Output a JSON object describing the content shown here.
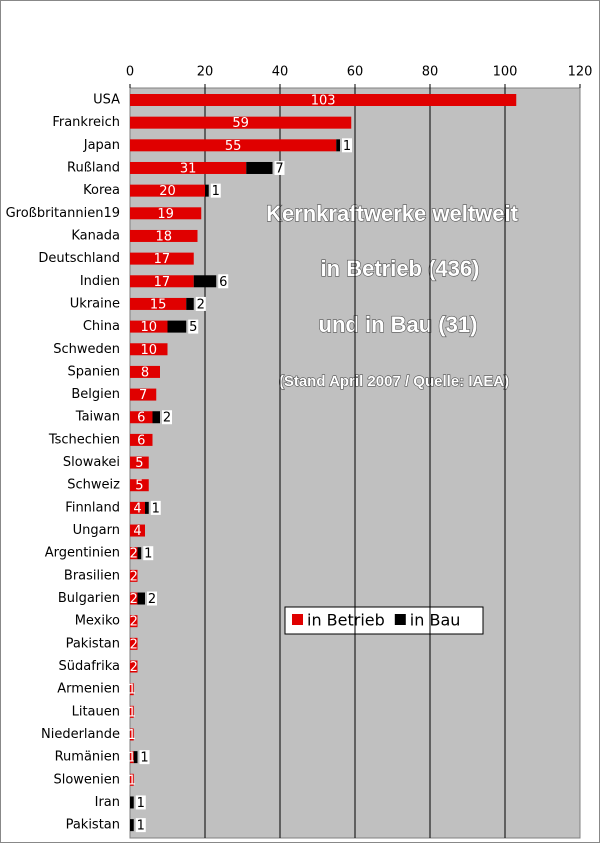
{
  "chart_data": {
    "type": "stacked-barh",
    "annotations": [
      "Kernkraftwerke weltweit",
      "in Betrieb (436)",
      "und in Bau (31)",
      "(Stand April 2007 / Quelle: IAEA)"
    ],
    "categories": [
      "USA",
      "Frankreich",
      "Japan",
      "Rußland",
      "Korea",
      "Großbritannien19",
      "Kanada",
      "Deutschland",
      "Indien",
      "Ukraine",
      "China",
      "Schweden",
      "Spanien",
      "Belgien",
      "Taiwan",
      "Tschechien",
      "Slowakei",
      "Schweiz",
      "Finnland",
      "Ungarn",
      "Argentinien",
      "Brasilien",
      "Bulgarien",
      "Mexiko",
      "Pakistan",
      "Südafrika",
      "Armenien",
      "Litauen",
      "Niederlande",
      "Rumänien",
      "Slowenien",
      "Iran",
      "Pakistan"
    ],
    "series": [
      {
        "name": "in Betrieb",
        "color": "#e00000",
        "label_color": "#ffffff",
        "values": [
          103,
          59,
          55,
          31,
          20,
          19,
          18,
          17,
          17,
          15,
          10,
          10,
          8,
          7,
          6,
          6,
          5,
          5,
          4,
          4,
          2,
          2,
          2,
          2,
          2,
          2,
          1,
          1,
          1,
          1,
          1,
          null,
          null
        ]
      },
      {
        "name": "in Bau",
        "color": "#000000",
        "label_color": "#000000",
        "values": [
          null,
          null,
          1,
          7,
          1,
          null,
          null,
          null,
          6,
          2,
          5,
          null,
          null,
          null,
          2,
          null,
          null,
          null,
          1,
          null,
          1,
          null,
          2,
          null,
          null,
          null,
          null,
          null,
          null,
          1,
          null,
          1,
          1
        ]
      }
    ],
    "xlim": [
      0,
      120
    ],
    "xticks": [
      0,
      20,
      40,
      60,
      80,
      100,
      120
    ],
    "grid": true
  }
}
